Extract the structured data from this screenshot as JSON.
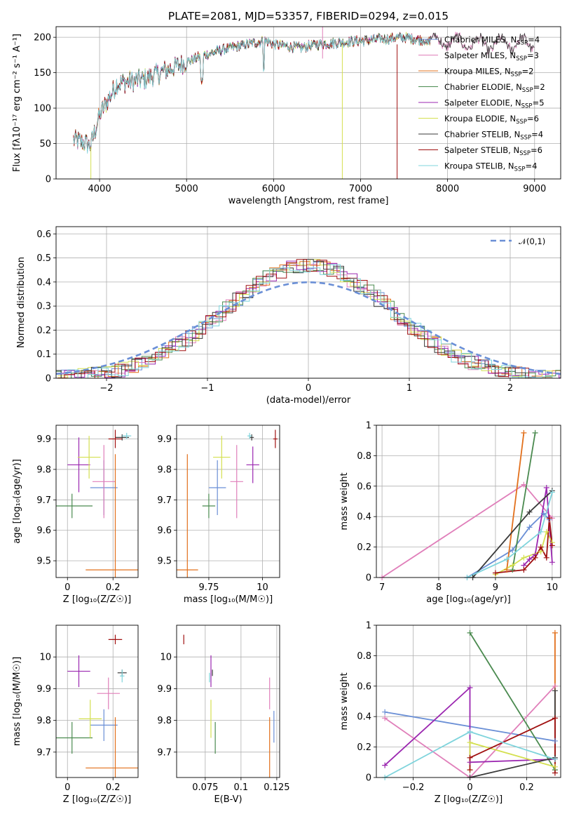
{
  "title": "PLATE=2081, MJD=53357, FIBERID=0294, z=0.015",
  "colors": {
    "chabrier_miles": "#6a8fd6",
    "salpeter_miles": "#e07fba",
    "kroupa_miles": "#e2701c",
    "chabrier_elodie": "#4a8a4f",
    "salpeter_elodie": "#9b27b0",
    "kroupa_elodie": "#d4e050",
    "chabrier_stelib": "#3a3a3a",
    "salpeter_stelib": "#a01010",
    "kroupa_stelib": "#7fd4dc",
    "grid": "#b0b0b0"
  },
  "chart_data": [
    {
      "id": "spectrum",
      "type": "line",
      "title": "PLATE=2081, MJD=53357, FIBERID=0294, z=0.015",
      "xlabel": "wavelength [Angstrom, rest frame]",
      "ylabel": "Flux [f_λ 10^-17 erg cm^-2 s^-1 A^-1]",
      "xlim": [
        3500,
        9300
      ],
      "ylim": [
        0,
        215
      ],
      "xticks": [
        4000,
        5000,
        6000,
        7000,
        8000,
        9000
      ],
      "yticks": [
        0,
        50,
        100,
        150,
        200
      ],
      "legend_position": "right",
      "series": [
        {
          "name": "Chabrier MILES, N_SSP=4",
          "key": "chabrier_miles"
        },
        {
          "name": "Salpeter MILES, N_SSP=3",
          "key": "salpeter_miles"
        },
        {
          "name": "Kroupa MILES, N_SSP=2",
          "key": "kroupa_miles"
        },
        {
          "name": "Chabrier ELODIE, N_SSP=2",
          "key": "chabrier_elodie"
        },
        {
          "name": "Salpeter ELODIE, N_SSP=5",
          "key": "salpeter_elodie"
        },
        {
          "name": "Kroupa ELODIE, N_SSP=6",
          "key": "kroupa_elodie"
        },
        {
          "name": "Chabrier STELIB, N_SSP=4",
          "key": "chabrier_stelib"
        },
        {
          "name": "Salpeter STELIB, N_SSP=6",
          "key": "salpeter_stelib"
        },
        {
          "name": "Kroupa STELIB, N_SSP=4",
          "key": "kroupa_stelib"
        }
      ],
      "continuum": {
        "x": [
          3700,
          3900,
          4000,
          4200,
          4500,
          5000,
          5200,
          5500,
          5900,
          6000,
          6300,
          6500,
          7000,
          7500,
          7800,
          8500,
          9000
        ],
        "y": [
          55,
          48,
          90,
          135,
          140,
          165,
          175,
          185,
          195,
          190,
          185,
          190,
          195,
          200,
          195,
          190,
          192
        ]
      }
    },
    {
      "id": "residuals",
      "type": "line",
      "xlabel": "(data-model)/error",
      "ylabel": "Normed distribution",
      "xlim": [
        -2.5,
        2.5
      ],
      "ylim": [
        0,
        0.63
      ],
      "xticks": [
        -2,
        -1,
        0,
        1,
        2
      ],
      "yticks": [
        0.0,
        0.1,
        0.2,
        0.3,
        0.4,
        0.5,
        0.6
      ],
      "legend": "𝒩(0,1)",
      "legend_position": "top-right",
      "gaussian": {
        "mean": 0,
        "sigma": 1
      }
    },
    {
      "id": "age_vs_Z",
      "type": "scatter",
      "xlabel": "Z [log10(Z/Z☉)]",
      "ylabel": "age  [log10(age/yr)]",
      "xlim": [
        -0.05,
        0.31
      ],
      "ylim": [
        9.445,
        9.945
      ],
      "xticks": [
        0.0,
        0.2
      ],
      "yticks": [
        9.5,
        9.6,
        9.7,
        9.8,
        9.9
      ],
      "points": [
        {
          "key": "chabrier_miles",
          "x": 0.16,
          "y": 9.74,
          "xerr": 0.06,
          "yerr": 0.09
        },
        {
          "key": "salpeter_miles",
          "x": 0.16,
          "y": 9.76,
          "xerr": 0.05,
          "yerr": 0.12
        },
        {
          "key": "kroupa_miles",
          "x": 0.21,
          "y": 9.47,
          "xerr": 0.13,
          "yerr": 0.38
        },
        {
          "key": "chabrier_elodie",
          "x": 0.02,
          "y": 9.68,
          "xerr": 0.09,
          "yerr": 0.04
        },
        {
          "key": "salpeter_elodie",
          "x": 0.05,
          "y": 9.815,
          "xerr": 0.05,
          "yerr": 0.09
        },
        {
          "key": "kroupa_elodie",
          "x": 0.095,
          "y": 9.84,
          "xerr": 0.05,
          "yerr": 0.07
        },
        {
          "key": "chabrier_stelib",
          "x": 0.24,
          "y": 9.905,
          "xerr": 0.03,
          "yerr": 0.01
        },
        {
          "key": "salpeter_stelib",
          "x": 0.21,
          "y": 9.9,
          "xerr": 0.03,
          "yerr": 0.03
        },
        {
          "key": "kroupa_stelib",
          "x": 0.26,
          "y": 9.91,
          "xerr": 0.02,
          "yerr": 0.01
        }
      ]
    },
    {
      "id": "age_vs_mass",
      "type": "scatter",
      "xlabel": "mass [log10(M/M☉)]",
      "xlim": [
        9.6,
        10.08
      ],
      "ylim": [
        9.445,
        9.945
      ],
      "xticks": [
        9.75,
        10.0
      ],
      "yticks": [
        9.5,
        9.6,
        9.7,
        9.8,
        9.9
      ],
      "points": [
        {
          "key": "chabrier_miles",
          "x": 9.79,
          "y": 9.74,
          "xerr": 0.04,
          "yerr": 0.09
        },
        {
          "key": "salpeter_miles",
          "x": 9.88,
          "y": 9.76,
          "xerr": 0.03,
          "yerr": 0.12
        },
        {
          "key": "kroupa_miles",
          "x": 9.65,
          "y": 9.47,
          "xerr": 0.05,
          "yerr": 0.38
        },
        {
          "key": "chabrier_elodie",
          "x": 9.75,
          "y": 9.68,
          "xerr": 0.03,
          "yerr": 0.04
        },
        {
          "key": "salpeter_elodie",
          "x": 9.955,
          "y": 9.815,
          "xerr": 0.03,
          "yerr": 0.06
        },
        {
          "key": "kroupa_elodie",
          "x": 9.81,
          "y": 9.84,
          "xerr": 0.04,
          "yerr": 0.07
        },
        {
          "key": "chabrier_stelib",
          "x": 9.95,
          "y": 9.905,
          "xerr": 0.01,
          "yerr": 0.01
        },
        {
          "key": "salpeter_stelib",
          "x": 10.06,
          "y": 9.9,
          "xerr": 0.01,
          "yerr": 0.03
        },
        {
          "key": "kroupa_stelib",
          "x": 9.94,
          "y": 9.91,
          "xerr": 0.01,
          "yerr": 0.01
        }
      ]
    },
    {
      "id": "weights_vs_age",
      "type": "line",
      "xlabel": "age  [log10(age/yr)]",
      "ylabel": "mass weight",
      "xlim": [
        6.9,
        10.15
      ],
      "ylim": [
        0,
        1.0
      ],
      "xticks": [
        7,
        8,
        9,
        10
      ],
      "yticks": [
        0.0,
        0.2,
        0.4,
        0.6,
        0.8,
        1.0
      ],
      "series": [
        {
          "key": "chabrier_miles",
          "x": [
            8.5,
            9.3,
            9.6,
            9.85,
            9.95
          ],
          "y": [
            0.0,
            0.18,
            0.33,
            0.42,
            0.38
          ]
        },
        {
          "key": "salpeter_miles",
          "x": [
            7.0,
            9.5,
            10.0
          ],
          "y": [
            0.0,
            0.61,
            0.39
          ]
        },
        {
          "key": "kroupa_miles",
          "x": [
            9.2,
            9.5
          ],
          "y": [
            0.05,
            0.95
          ]
        },
        {
          "key": "chabrier_elodie",
          "x": [
            9.3,
            9.7
          ],
          "y": [
            0.05,
            0.95
          ]
        },
        {
          "key": "salpeter_elodie",
          "x": [
            9.5,
            9.6,
            9.7,
            9.9,
            10.0
          ],
          "y": [
            0.08,
            0.12,
            0.15,
            0.59,
            0.1
          ]
        },
        {
          "key": "kroupa_elodie",
          "x": [
            9.0,
            9.3,
            9.5,
            9.8,
            9.9,
            10.0
          ],
          "y": [
            0.02,
            0.08,
            0.13,
            0.17,
            0.3,
            0.23
          ]
        },
        {
          "key": "chabrier_stelib",
          "x": [
            8.6,
            9.6,
            10.0
          ],
          "y": [
            0.0,
            0.43,
            0.57
          ]
        },
        {
          "key": "salpeter_stelib",
          "x": [
            9.0,
            9.5,
            9.7,
            9.8,
            9.9,
            9.95,
            10.0
          ],
          "y": [
            0.03,
            0.05,
            0.13,
            0.2,
            0.13,
            0.39,
            0.21
          ]
        },
        {
          "key": "kroupa_stelib",
          "x": [
            8.5,
            9.2,
            9.8,
            10.0
          ],
          "y": [
            0.0,
            0.12,
            0.3,
            0.56
          ]
        }
      ]
    },
    {
      "id": "mass_vs_Z",
      "type": "scatter",
      "xlabel": "Z [log10(Z/Z☉)]",
      "ylabel": "mass [log10(M/M☉)]",
      "xlim": [
        -0.05,
        0.31
      ],
      "ylim": [
        9.62,
        10.1
      ],
      "xticks": [
        0.0,
        0.2
      ],
      "yticks": [
        9.7,
        9.8,
        9.9,
        10.0
      ],
      "points": [
        {
          "key": "chabrier_miles",
          "x": 0.16,
          "y": 9.785,
          "xerr": 0.06,
          "yerr": 0.05
        },
        {
          "key": "salpeter_miles",
          "x": 0.18,
          "y": 9.885,
          "xerr": 0.05,
          "yerr": 0.05
        },
        {
          "key": "kroupa_miles",
          "x": 0.21,
          "y": 9.65,
          "xerr": 0.13,
          "yerr": 0.16
        },
        {
          "key": "chabrier_elodie",
          "x": 0.02,
          "y": 9.745,
          "xerr": 0.09,
          "yerr": 0.05
        },
        {
          "key": "salpeter_elodie",
          "x": 0.05,
          "y": 9.955,
          "xerr": 0.05,
          "yerr": 0.05
        },
        {
          "key": "kroupa_elodie",
          "x": 0.1,
          "y": 9.805,
          "xerr": 0.05,
          "yerr": 0.06
        },
        {
          "key": "chabrier_stelib",
          "x": 0.24,
          "y": 9.95,
          "xerr": 0.02,
          "yerr": 0.01
        },
        {
          "key": "salpeter_stelib",
          "x": 0.21,
          "y": 10.055,
          "xerr": 0.03,
          "yerr": 0.015
        },
        {
          "key": "kroupa_stelib",
          "x": 0.24,
          "y": 9.94,
          "xerr": 0.01,
          "yerr": 0.02
        }
      ]
    },
    {
      "id": "mass_vs_ebv",
      "type": "scatter",
      "xlabel": "E(B-V)",
      "xlim": [
        0.055,
        0.127
      ],
      "ylim": [
        9.62,
        10.1
      ],
      "xticks": [
        0.075,
        0.1,
        0.125
      ],
      "yticks": [
        9.7,
        9.8,
        9.9,
        10.0
      ],
      "points": [
        {
          "key": "chabrier_miles",
          "x": 0.123,
          "y": 9.78,
          "xerr": 0,
          "yerr": 0.05
        },
        {
          "key": "salpeter_miles",
          "x": 0.12,
          "y": 9.885,
          "xerr": 0,
          "yerr": 0.05
        },
        {
          "key": "kroupa_miles",
          "x": 0.12,
          "y": 9.65,
          "xerr": 0,
          "yerr": 0.16
        },
        {
          "key": "chabrier_elodie",
          "x": 0.082,
          "y": 9.745,
          "xerr": 0,
          "yerr": 0.05
        },
        {
          "key": "salpeter_elodie",
          "x": 0.079,
          "y": 9.955,
          "xerr": 0,
          "yerr": 0.05
        },
        {
          "key": "kroupa_elodie",
          "x": 0.079,
          "y": 9.805,
          "xerr": 0,
          "yerr": 0.06
        },
        {
          "key": "chabrier_stelib",
          "x": 0.08,
          "y": 9.95,
          "xerr": 0,
          "yerr": 0.01
        },
        {
          "key": "salpeter_stelib",
          "x": 0.06,
          "y": 10.055,
          "xerr": 0,
          "yerr": 0.015
        },
        {
          "key": "kroupa_stelib",
          "x": 0.078,
          "y": 9.935,
          "xerr": 0,
          "yerr": 0.015
        }
      ]
    },
    {
      "id": "weights_vs_Z",
      "type": "line",
      "xlabel": "Z [log10(Z/Z☉)]",
      "ylabel": "mass weight",
      "xlim": [
        -0.33,
        0.32
      ],
      "ylim": [
        0,
        1.0
      ],
      "xticks": [
        -0.2,
        0.0,
        0.2
      ],
      "yticks": [
        0.0,
        0.2,
        0.4,
        0.6,
        0.8,
        1.0
      ],
      "series": [
        {
          "key": "chabrier_miles",
          "x": [
            -0.3,
            0.3
          ],
          "y": [
            0.43,
            0.24
          ]
        },
        {
          "key": "salpeter_miles",
          "x": [
            -0.3,
            0.0,
            0.3
          ],
          "y": [
            0.39,
            0.0,
            0.6
          ]
        },
        {
          "key": "kroupa_miles",
          "x": [
            0.3,
            0.3
          ],
          "y": [
            0.05,
            0.95
          ]
        },
        {
          "key": "chabrier_elodie",
          "x": [
            0.0,
            0.3
          ],
          "y": [
            0.95,
            0.05
          ]
        },
        {
          "key": "salpeter_elodie",
          "x": [
            -0.3,
            0.0,
            0.0,
            0.3
          ],
          "y": [
            0.08,
            0.59,
            0.1,
            0.12
          ]
        },
        {
          "key": "kroupa_elodie",
          "x": [
            0.0,
            0.0,
            0.3
          ],
          "y": [
            0.05,
            0.23,
            0.07
          ]
        },
        {
          "key": "chabrier_stelib",
          "x": [
            0.0,
            0.3,
            0.3
          ],
          "y": [
            0.0,
            0.13,
            0.57
          ]
        },
        {
          "key": "salpeter_stelib",
          "x": [
            0.0,
            0.0,
            0.3,
            0.3
          ],
          "y": [
            0.05,
            0.13,
            0.39,
            0.03
          ]
        },
        {
          "key": "kroupa_stelib",
          "x": [
            -0.3,
            0.0,
            0.3
          ],
          "y": [
            0.0,
            0.3,
            0.12
          ]
        }
      ]
    }
  ]
}
